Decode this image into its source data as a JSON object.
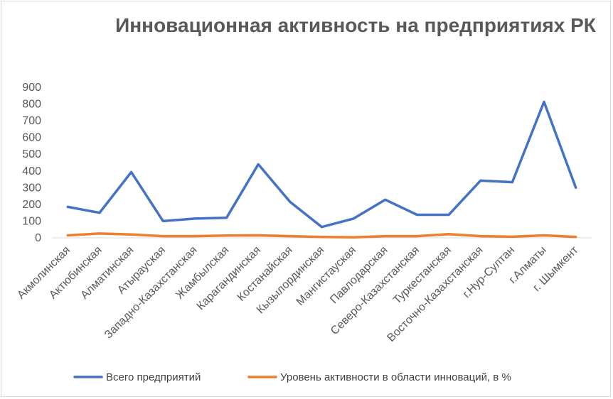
{
  "chart_data": {
    "type": "line",
    "title": "Инновационная активность на предприятиях РК",
    "xlabel": "",
    "ylabel": "",
    "ylim": [
      0,
      900
    ],
    "yticks": [
      0,
      100,
      200,
      300,
      400,
      500,
      600,
      700,
      800,
      900
    ],
    "grid": false,
    "legend_position": "bottom",
    "categories": [
      "Акмолинская",
      "Актюбинская",
      "Алматинская",
      "Атырауская",
      "Западно-Казахстанская",
      "Жамбылская",
      "Карагандинская",
      "Костанайская",
      "Кызылординская",
      "Мангистауская",
      "Павлодарская",
      "Северо-Казахстанская",
      "Туркестанская",
      "Восточно-Казахстанская",
      "г.Нур-Султан",
      "г.Алматы",
      "г. Шымкент"
    ],
    "series": [
      {
        "name": "Всего предприятий",
        "color": "#4472c4",
        "values": [
          185,
          150,
          393,
          100,
          115,
          120,
          440,
          215,
          65,
          115,
          228,
          138,
          138,
          342,
          333,
          813,
          300
        ]
      },
      {
        "name": "Уровень активности в области инноваций, в %",
        "color": "#ed7d31",
        "values": [
          15,
          26,
          20,
          10,
          10,
          14,
          15,
          10,
          5,
          3,
          10,
          10,
          22,
          10,
          7,
          15,
          6
        ]
      }
    ]
  }
}
